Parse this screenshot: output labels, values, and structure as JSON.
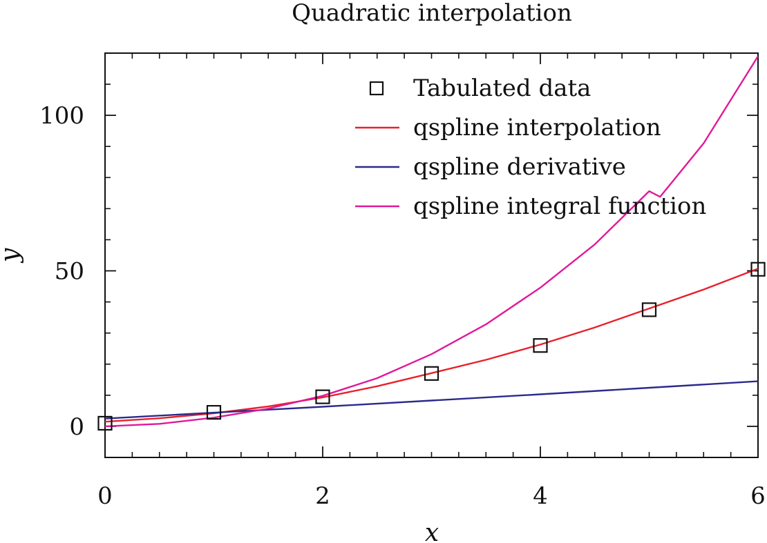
{
  "chart_data": {
    "type": "line",
    "title": "Quadratic interpolation",
    "xlabel": "x",
    "ylabel": "y",
    "xlim": [
      0,
      6
    ],
    "ylim": [
      -10,
      120
    ],
    "x_ticks": [
      0,
      2,
      4,
      6
    ],
    "x_tick_labels": [
      "0",
      "2",
      "4",
      "6"
    ],
    "x_minor_step": 0.25,
    "y_ticks": [
      0,
      50,
      100
    ],
    "y_tick_labels": [
      "0",
      "50",
      "100"
    ],
    "y_minor_step": 10,
    "grid": false,
    "legend_position": "top-right",
    "series": [
      {
        "name": "Tabulated data",
        "kind": "markers",
        "marker": "open-square",
        "color": "#111111",
        "x": [
          0,
          1,
          2,
          3,
          4,
          5,
          6
        ],
        "y": [
          1,
          4.5,
          9.5,
          17,
          26,
          37.5,
          50.5
        ]
      },
      {
        "name": "qspline interpolation",
        "kind": "line",
        "color": "#e8202a",
        "x": [
          0,
          0.5,
          1,
          1.5,
          2,
          2.5,
          3,
          3.5,
          4,
          4.5,
          5,
          5.5,
          6
        ],
        "y": [
          1.5,
          2.6,
          4.2,
          6.4,
          9.3,
          12.9,
          17.1,
          21.4,
          26.3,
          31.8,
          37.9,
          44,
          50.7
        ]
      },
      {
        "name": "qspline derivative",
        "kind": "line",
        "color": "#2a2a8c",
        "x": [
          0,
          1,
          2,
          3,
          4,
          5,
          6
        ],
        "y": [
          2.5,
          4.4,
          6.3,
          8.3,
          10.3,
          12.4,
          14.5
        ]
      },
      {
        "name": "qspline integral function",
        "kind": "line",
        "color": "#e0189a",
        "x": [
          0,
          0.5,
          1,
          1.5,
          2,
          2.5,
          3,
          3.5,
          4,
          4.5,
          5,
          5.1,
          5.5,
          6
        ],
        "y": [
          0,
          0.8,
          2.8,
          5.7,
          9.8,
          15.5,
          23.2,
          32.8,
          44.6,
          58.5,
          75.6,
          73.8,
          91,
          119
        ]
      }
    ]
  }
}
